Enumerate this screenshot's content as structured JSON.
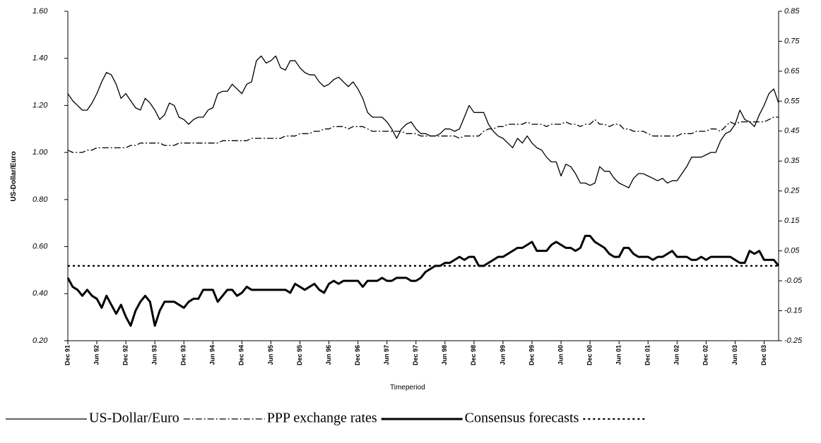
{
  "chart_data": {
    "type": "line",
    "x_label": "Timeperiod",
    "y_label": "US-Dollar/Euro",
    "categories": [
      "Dec 91",
      null,
      null,
      null,
      null,
      null,
      "Jun 92",
      null,
      null,
      null,
      null,
      null,
      "Dec 92",
      null,
      null,
      null,
      null,
      null,
      "Jun 93",
      null,
      null,
      null,
      null,
      null,
      "Dec 93",
      null,
      null,
      null,
      null,
      null,
      "Jun 94",
      null,
      null,
      null,
      null,
      null,
      "Dec 94",
      null,
      null,
      null,
      null,
      null,
      "Jun 95",
      null,
      null,
      null,
      null,
      null,
      "Dec 95",
      null,
      null,
      null,
      null,
      null,
      "Jun 96",
      null,
      null,
      null,
      null,
      null,
      "Dec 96",
      null,
      null,
      null,
      null,
      null,
      "Jun 97",
      null,
      null,
      null,
      null,
      null,
      "Dec 97",
      null,
      null,
      null,
      null,
      null,
      "Jun 98",
      null,
      null,
      null,
      null,
      null,
      "Dec 98",
      null,
      null,
      null,
      null,
      null,
      "Jun 99",
      null,
      null,
      null,
      null,
      null,
      "Dec 99",
      null,
      null,
      null,
      null,
      null,
      "Jun 00",
      null,
      null,
      null,
      null,
      null,
      "Dec 00",
      null,
      null,
      null,
      null,
      null,
      "Jun 01",
      null,
      null,
      null,
      null,
      null,
      "Dec 01",
      null,
      null,
      null,
      null,
      null,
      "Jun 02",
      null,
      null,
      null,
      null,
      null,
      "Dec 02",
      null,
      null,
      null,
      null,
      null,
      "Jun 03",
      null,
      null,
      null,
      null,
      null,
      "Dec 03",
      null,
      null,
      null
    ],
    "series": [
      {
        "name": "US-Dollar/Euro",
        "color": "#000000",
        "style": "solid",
        "values": [
          1.25,
          1.22,
          1.2,
          1.18,
          1.18,
          1.21,
          1.25,
          1.3,
          1.34,
          1.33,
          1.29,
          1.23,
          1.25,
          1.22,
          1.19,
          1.18,
          1.23,
          1.21,
          1.18,
          1.14,
          1.16,
          1.21,
          1.2,
          1.15,
          1.14,
          1.12,
          1.14,
          1.15,
          1.15,
          1.18,
          1.19,
          1.25,
          1.26,
          1.26,
          1.29,
          1.27,
          1.25,
          1.29,
          1.3,
          1.39,
          1.41,
          1.38,
          1.39,
          1.41,
          1.36,
          1.35,
          1.39,
          1.39,
          1.36,
          1.34,
          1.33,
          1.33,
          1.3,
          1.28,
          1.29,
          1.31,
          1.32,
          1.3,
          1.28,
          1.3,
          1.27,
          1.23,
          1.17,
          1.15,
          1.15,
          1.15,
          1.13,
          1.1,
          1.06,
          1.1,
          1.12,
          1.13,
          1.1,
          1.08,
          1.08,
          1.07,
          1.07,
          1.08,
          1.1,
          1.1,
          1.09,
          1.1,
          1.15,
          1.2,
          1.17,
          1.17,
          1.17,
          1.12,
          1.09,
          1.07,
          1.06,
          1.04,
          1.02,
          1.06,
          1.04,
          1.07,
          1.04,
          1.02,
          1.01,
          0.98,
          0.96,
          0.96,
          0.9,
          0.95,
          0.94,
          0.91,
          0.87,
          0.87,
          0.86,
          0.87,
          0.94,
          0.92,
          0.92,
          0.89,
          0.87,
          0.86,
          0.85,
          0.89,
          0.91,
          0.91,
          0.9,
          0.89,
          0.88,
          0.89,
          0.87,
          0.88,
          0.88,
          0.91,
          0.94,
          0.98,
          0.98,
          0.98,
          0.99,
          1.0,
          1.0,
          1.05,
          1.08,
          1.09,
          1.12,
          1.18,
          1.14,
          1.13,
          1.11,
          1.16,
          1.2,
          1.25,
          1.27,
          1.21
        ]
      },
      {
        "name": "PPP exchange rates",
        "color": "#000000",
        "style": "dashdot",
        "values": [
          1.01,
          1.0,
          1.0,
          1.0,
          1.01,
          1.01,
          1.02,
          1.02,
          1.02,
          1.02,
          1.02,
          1.02,
          1.02,
          1.03,
          1.03,
          1.04,
          1.04,
          1.04,
          1.04,
          1.04,
          1.03,
          1.03,
          1.03,
          1.04,
          1.04,
          1.04,
          1.04,
          1.04,
          1.04,
          1.04,
          1.04,
          1.04,
          1.05,
          1.05,
          1.05,
          1.05,
          1.05,
          1.05,
          1.06,
          1.06,
          1.06,
          1.06,
          1.06,
          1.06,
          1.06,
          1.07,
          1.07,
          1.07,
          1.08,
          1.08,
          1.08,
          1.09,
          1.09,
          1.1,
          1.1,
          1.11,
          1.11,
          1.11,
          1.1,
          1.11,
          1.11,
          1.11,
          1.1,
          1.09,
          1.09,
          1.09,
          1.09,
          1.09,
          1.09,
          1.09,
          1.08,
          1.08,
          1.08,
          1.07,
          1.07,
          1.07,
          1.07,
          1.07,
          1.07,
          1.07,
          1.07,
          1.06,
          1.07,
          1.07,
          1.07,
          1.07,
          1.09,
          1.1,
          1.1,
          1.11,
          1.11,
          1.12,
          1.12,
          1.12,
          1.12,
          1.13,
          1.12,
          1.12,
          1.12,
          1.11,
          1.12,
          1.12,
          1.12,
          1.13,
          1.12,
          1.12,
          1.11,
          1.12,
          1.12,
          1.14,
          1.12,
          1.12,
          1.11,
          1.12,
          1.12,
          1.1,
          1.1,
          1.09,
          1.09,
          1.09,
          1.08,
          1.07,
          1.07,
          1.07,
          1.07,
          1.07,
          1.07,
          1.08,
          1.08,
          1.08,
          1.09,
          1.09,
          1.09,
          1.1,
          1.1,
          1.09,
          1.11,
          1.13,
          1.12,
          1.13,
          1.13,
          1.13,
          1.13,
          1.13,
          1.13,
          1.14,
          1.15,
          1.15
        ]
      },
      {
        "name": "Consensus forecasts",
        "color": "#000000",
        "style": "thick",
        "axis": "y2",
        "values": [
          -0.04,
          -0.07,
          -0.08,
          -0.1,
          -0.08,
          -0.1,
          -0.11,
          -0.14,
          -0.1,
          -0.13,
          -0.16,
          -0.13,
          -0.17,
          -0.2,
          -0.15,
          -0.12,
          -0.1,
          -0.12,
          -0.2,
          -0.15,
          -0.12,
          -0.12,
          -0.12,
          -0.13,
          -0.14,
          -0.12,
          -0.11,
          -0.11,
          -0.08,
          -0.08,
          -0.08,
          -0.12,
          -0.1,
          -0.08,
          -0.08,
          -0.1,
          -0.09,
          -0.07,
          -0.08,
          -0.08,
          -0.08,
          -0.08,
          -0.08,
          -0.08,
          -0.08,
          -0.08,
          -0.09,
          -0.06,
          -0.07,
          -0.08,
          -0.07,
          -0.06,
          -0.08,
          -0.09,
          -0.06,
          -0.05,
          -0.06,
          -0.05,
          -0.05,
          -0.05,
          -0.05,
          -0.07,
          -0.05,
          -0.05,
          -0.05,
          -0.04,
          -0.05,
          -0.05,
          -0.04,
          -0.04,
          -0.04,
          -0.05,
          -0.05,
          -0.04,
          -0.02,
          -0.01,
          0.0,
          0.0,
          0.01,
          0.01,
          0.02,
          0.03,
          0.02,
          0.03,
          0.03,
          0.0,
          0.0,
          0.01,
          0.02,
          0.03,
          0.03,
          0.04,
          0.05,
          0.06,
          0.06,
          0.07,
          0.08,
          0.05,
          0.05,
          0.05,
          0.07,
          0.08,
          0.07,
          0.06,
          0.06,
          0.05,
          0.06,
          0.1,
          0.1,
          0.08,
          0.07,
          0.06,
          0.04,
          0.03,
          0.03,
          0.06,
          0.06,
          0.04,
          0.03,
          0.03,
          0.03,
          0.02,
          0.03,
          0.03,
          0.04,
          0.05,
          0.03,
          0.03,
          0.03,
          0.02,
          0.02,
          0.03,
          0.02,
          0.03,
          0.03,
          0.03,
          0.03,
          0.03,
          0.02,
          0.01,
          0.01,
          0.05,
          0.04,
          0.05,
          0.02,
          0.02,
          0.02,
          0.0
        ]
      }
    ],
    "reference_line": {
      "value": 0,
      "axis": "y2",
      "style": "dotted"
    },
    "ylim": [
      0.2,
      1.6
    ],
    "yticks": [
      {
        "value": 0.2,
        "label": "0.20"
      },
      {
        "value": 0.4,
        "label": "0.40"
      },
      {
        "value": 0.6,
        "label": "0.60"
      },
      {
        "value": 0.8,
        "label": "0.80"
      },
      {
        "value": 1.0,
        "label": "1.00"
      },
      {
        "value": 1.2,
        "label": "1.20"
      },
      {
        "value": 1.4,
        "label": "1.40"
      },
      {
        "value": 1.6,
        "label": "1.60"
      }
    ],
    "y2lim": [
      -0.25,
      0.85
    ],
    "y2ticks": [
      -0.25,
      -0.15,
      -0.05,
      0.05,
      0.15,
      0.25,
      0.35,
      0.45,
      0.55,
      0.65,
      0.75,
      0.85
    ],
    "grid": false,
    "legend": "bottom"
  }
}
